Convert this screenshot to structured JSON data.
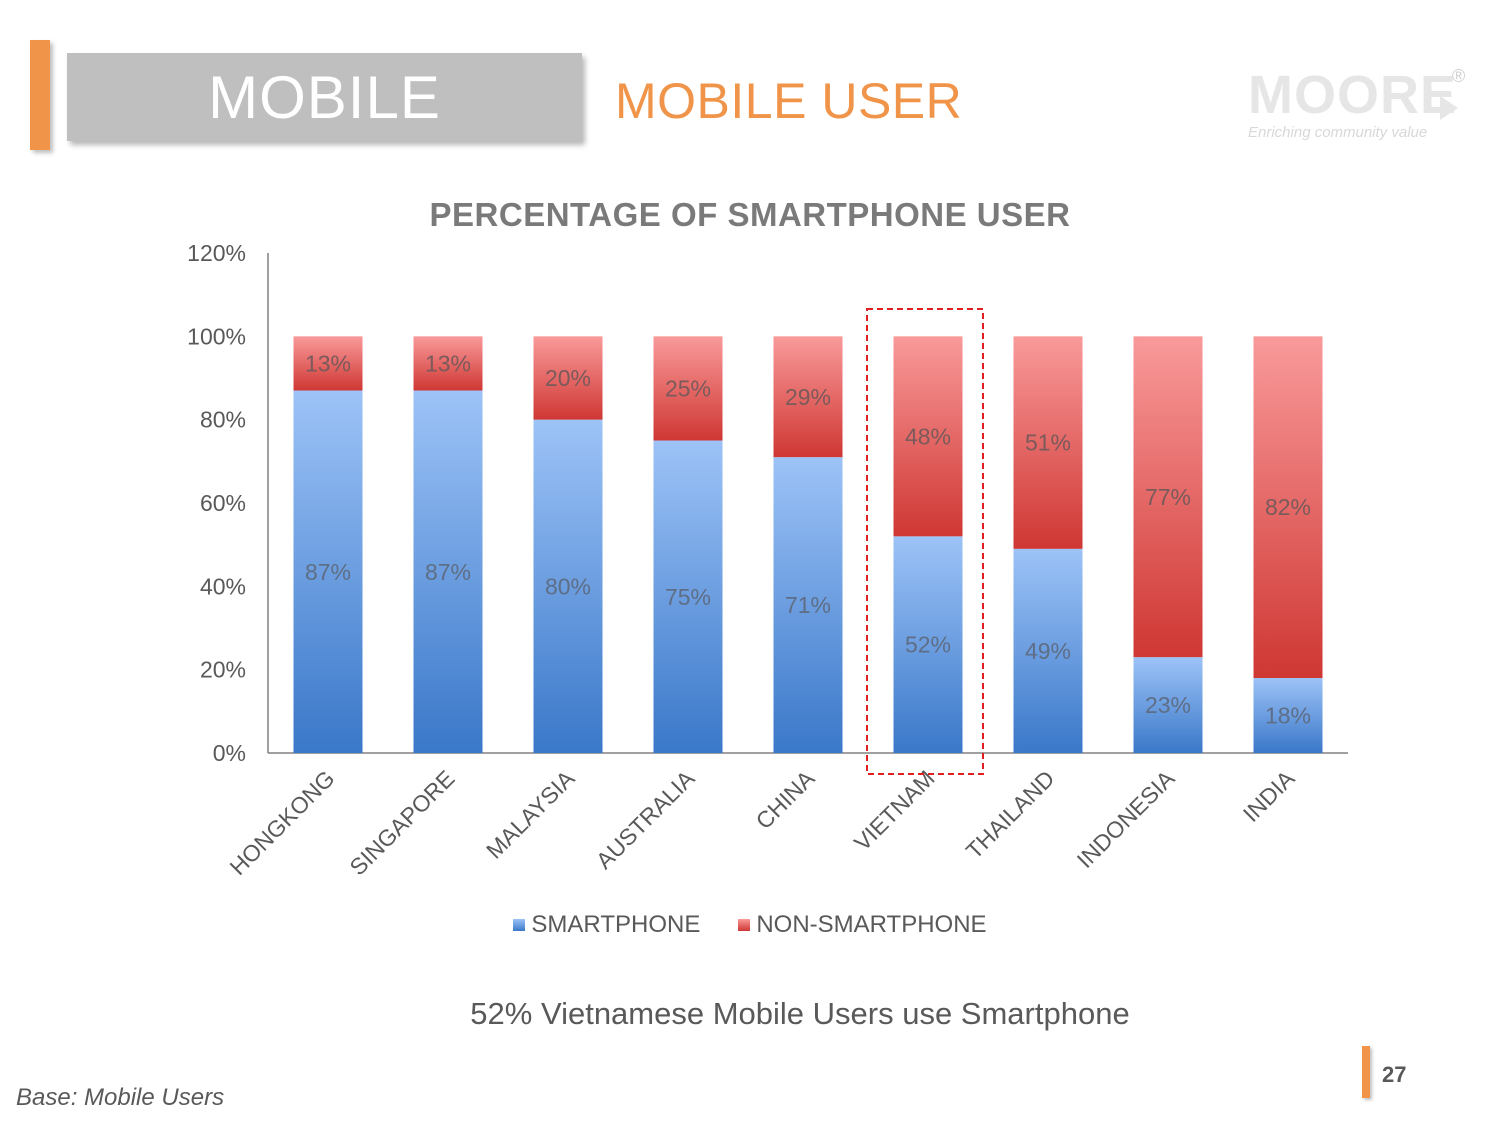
{
  "header": {
    "section_label": "MOBILE",
    "slide_title": "MOBILE USER",
    "logo_text": "MOORE",
    "logo_registered": "®",
    "logo_tagline": "Enriching community value"
  },
  "colors": {
    "accent": "#f0944a",
    "smartphone_light": "#9dc3f7",
    "smartphone_dark": "#3a78c9",
    "non_smartphone_light": "#f99a9a",
    "non_smartphone_dark": "#cf3733",
    "highlight_box": "#e02020"
  },
  "chart_data": {
    "type": "bar",
    "stacked": true,
    "title": "PERCENTAGE OF SMARTPHONE USER",
    "categories": [
      "HONGKONG",
      "SINGAPORE",
      "MALAYSIA",
      "AUSTRALIA",
      "CHINA",
      "VIETNAM",
      "THAILAND",
      "INDONESIA",
      "INDIA"
    ],
    "series": [
      {
        "name": "SMARTPHONE",
        "values": [
          87,
          87,
          80,
          75,
          71,
          52,
          49,
          23,
          18
        ]
      },
      {
        "name": "NON-SMARTPHONE",
        "values": [
          13,
          13,
          20,
          25,
          29,
          48,
          51,
          77,
          82
        ]
      }
    ],
    "ylim": [
      0,
      120
    ],
    "yticks": [
      "0%",
      "20%",
      "40%",
      "60%",
      "80%",
      "100%",
      "120%"
    ],
    "value_suffix": "%",
    "highlighted_category": "VIETNAM",
    "legend_position": "bottom",
    "grid": false
  },
  "caption": "52% Vietnamese Mobile Users use Smartphone",
  "base_note": "Base: Mobile Users",
  "page_number": "27"
}
